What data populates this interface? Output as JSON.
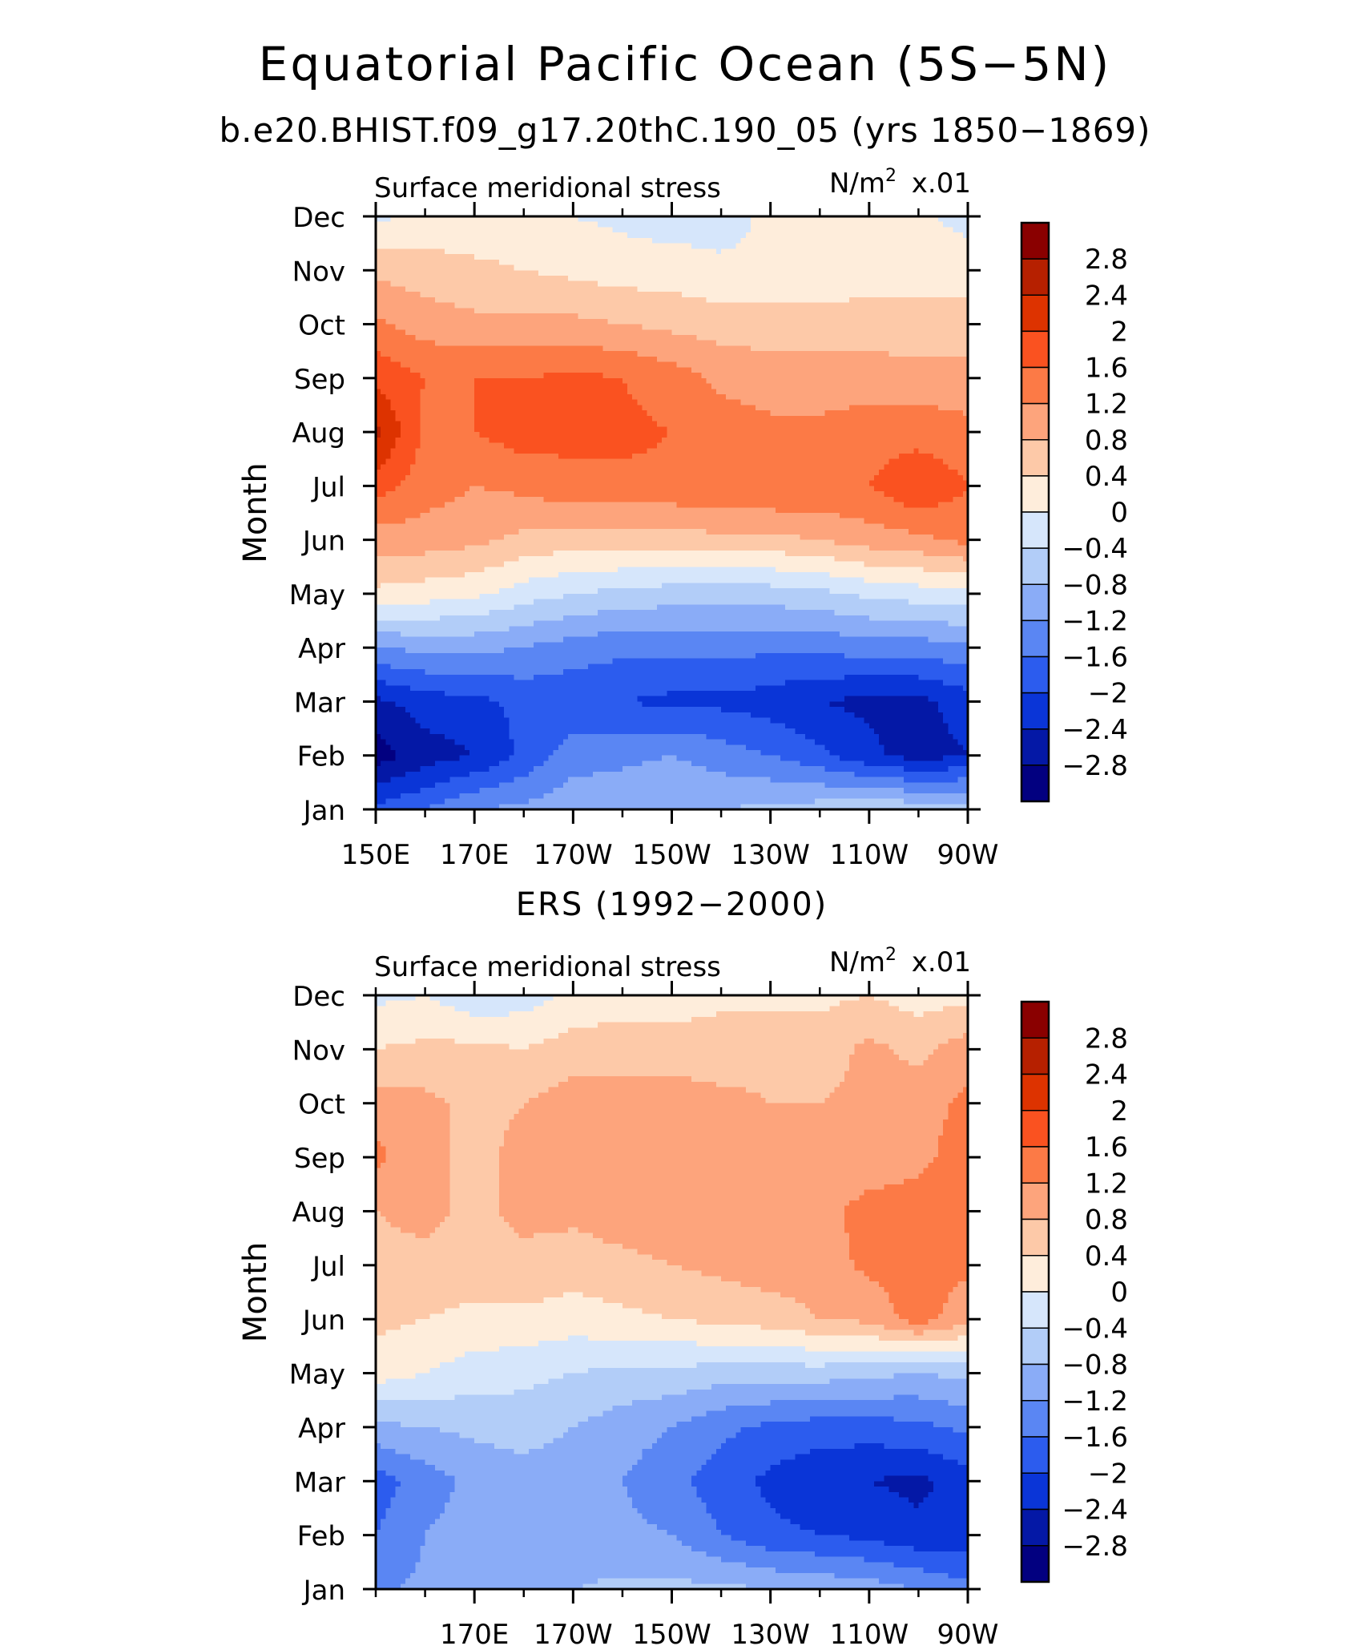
{
  "title": "Equatorial Pacific Ocean (5S−5N)",
  "subtitle": "b.e20.BHIST.f09_g17.20thC.190_05 (yrs 1850−1869)",
  "palette": {
    "levels": [
      "2.8",
      "2.4",
      "2",
      "1.6",
      "1.2",
      "0.8",
      "0.4",
      "0",
      "−0.4",
      "−0.8",
      "−1.2",
      "−1.6",
      "−2",
      "−2.4",
      "−2.8"
    ],
    "colors": [
      "#8a0000",
      "#b62000",
      "#dd3300",
      "#fa5220",
      "#fc7a46",
      "#fda47c",
      "#fdc9a8",
      "#feeddb",
      "#d6e6fb",
      "#b2cdf8",
      "#8aacf7",
      "#5a86f3",
      "#2c5cee",
      "#0a35d7",
      "#0418a6",
      "#020080"
    ],
    "line": "#000000",
    "background": "#ffffff"
  },
  "chart_data": [
    {
      "type": "heatmap",
      "panel_title": "",
      "left_string": "Surface meridional stress",
      "units": {
        "base": "N/m",
        "exp": "2",
        "scale": "x.01"
      },
      "ylabel": "Month",
      "y_categories": [
        "Jan",
        "Feb",
        "Mar",
        "Apr",
        "May",
        "Jun",
        "Jul",
        "Aug",
        "Sep",
        "Oct",
        "Nov",
        "Dec"
      ],
      "x_range": [
        150,
        270
      ],
      "x_ticks": [
        {
          "lon": 150,
          "label": "150E"
        },
        {
          "lon": 170,
          "label": "170E"
        },
        {
          "lon": 190,
          "label": "170W"
        },
        {
          "lon": 210,
          "label": "150W"
        },
        {
          "lon": 230,
          "label": "130W"
        },
        {
          "lon": 250,
          "label": "110W"
        },
        {
          "lon": 270,
          "label": "90W"
        }
      ],
      "x_minor_step": 10,
      "lon_grid": [
        150,
        160,
        170,
        180,
        190,
        200,
        210,
        220,
        230,
        240,
        250,
        260,
        270
      ],
      "values": [
        [
          -1.9,
          -1.6,
          -1.2,
          -1.1,
          -0.9,
          -0.9,
          -0.8,
          -0.8,
          -0.7,
          -0.6,
          -0.5,
          -0.5,
          -0.6
        ],
        [
          -3.0,
          -2.6,
          -2.4,
          -1.9,
          -1.4,
          -1.3,
          -1.2,
          -1.4,
          -1.6,
          -1.9,
          -2.3,
          -2.6,
          -2.4
        ],
        [
          -2.5,
          -2.2,
          -2.1,
          -1.9,
          -1.9,
          -2.0,
          -2.1,
          -2.1,
          -2.2,
          -2.4,
          -2.5,
          -2.5,
          -2.2
        ],
        [
          -1.2,
          -1.1,
          -1.1,
          -1.2,
          -1.4,
          -1.5,
          -1.5,
          -1.5,
          -1.5,
          -1.5,
          -1.4,
          -1.4,
          -1.3
        ],
        [
          0.3,
          0.2,
          0.1,
          -0.2,
          -0.4,
          -0.5,
          -0.6,
          -0.6,
          -0.6,
          -0.5,
          -0.3,
          -0.2,
          -0.1
        ],
        [
          1.0,
          1.0,
          0.9,
          0.7,
          0.6,
          0.6,
          0.6,
          0.7,
          0.7,
          0.8,
          1.0,
          1.1,
          1.3
        ],
        [
          1.8,
          1.4,
          1.2,
          1.3,
          1.5,
          1.5,
          1.5,
          1.6,
          1.6,
          1.6,
          1.6,
          2.0,
          1.6
        ],
        [
          2.5,
          1.5,
          1.6,
          1.8,
          1.7,
          1.7,
          1.6,
          1.4,
          1.3,
          1.3,
          1.4,
          1.4,
          1.3
        ],
        [
          1.9,
          1.6,
          1.6,
          1.6,
          1.7,
          1.6,
          1.4,
          1.1,
          1.0,
          1.0,
          1.0,
          1.0,
          1.0
        ],
        [
          1.3,
          1.0,
          0.9,
          0.9,
          0.9,
          0.8,
          0.7,
          0.6,
          0.6,
          0.6,
          0.6,
          0.5,
          0.5
        ],
        [
          0.7,
          0.6,
          0.5,
          0.4,
          0.3,
          0.2,
          0.2,
          0.1,
          0.1,
          0.1,
          0.2,
          0.3,
          0.3
        ],
        [
          -0.1,
          0.1,
          0.1,
          0.1,
          0.0,
          -0.1,
          -0.2,
          -0.2,
          0.1,
          0.1,
          0.1,
          0.1,
          -0.2
        ]
      ],
      "colorbar_levels": [
        "2.8",
        "2.4",
        "2",
        "1.6",
        "1.2",
        "0.8",
        "0.4",
        "0",
        "−0.4",
        "−0.8",
        "−1.2",
        "−1.6",
        "−2",
        "−2.4",
        "−2.8"
      ]
    },
    {
      "type": "heatmap",
      "panel_title": "ERS (1992−2000)",
      "left_string": "Surface meridional stress",
      "units": {
        "base": "N/m",
        "exp": "2",
        "scale": "x.01"
      },
      "ylabel": "Month",
      "y_categories": [
        "Jan",
        "Feb",
        "Mar",
        "Apr",
        "May",
        "Jun",
        "Jul",
        "Aug",
        "Sep",
        "Oct",
        "Nov",
        "Dec"
      ],
      "x_range": [
        150,
        270
      ],
      "x_ticks": [
        {
          "lon": 170,
          "label": "170E"
        },
        {
          "lon": 190,
          "label": "170W"
        },
        {
          "lon": 210,
          "label": "150W"
        },
        {
          "lon": 230,
          "label": "130W"
        },
        {
          "lon": 250,
          "label": "110W"
        },
        {
          "lon": 270,
          "label": "90W"
        }
      ],
      "x_minor_step": 10,
      "lon_grid": [
        150,
        160,
        170,
        180,
        190,
        200,
        210,
        220,
        230,
        240,
        250,
        260,
        270
      ],
      "values": [
        [
          -1.3,
          -1.1,
          -0.9,
          -0.8,
          -0.8,
          -0.7,
          -0.7,
          -0.7,
          -0.8,
          -0.9,
          -1.0,
          -1.2,
          -1.5
        ],
        [
          -1.6,
          -1.2,
          -1.0,
          -1.0,
          -1.1,
          -1.1,
          -1.2,
          -1.6,
          -1.9,
          -2.0,
          -2.1,
          -2.3,
          -2.2
        ],
        [
          -1.8,
          -1.4,
          -1.1,
          -1.0,
          -1.1,
          -1.2,
          -1.5,
          -1.8,
          -2.1,
          -2.3,
          -2.4,
          -2.5,
          -2.2
        ],
        [
          -0.9,
          -0.8,
          -0.7,
          -0.6,
          -0.8,
          -1.0,
          -1.2,
          -1.5,
          -1.7,
          -1.8,
          -1.8,
          -1.7,
          -1.5
        ],
        [
          0.2,
          0.0,
          -0.2,
          -0.3,
          -0.4,
          -0.5,
          -0.5,
          -0.6,
          -0.6,
          -0.6,
          -0.7,
          -0.8,
          -0.7
        ],
        [
          0.5,
          0.4,
          0.3,
          0.3,
          0.2,
          0.3,
          0.4,
          0.5,
          0.6,
          0.8,
          0.9,
          1.4,
          0.9
        ],
        [
          0.7,
          0.7,
          0.6,
          0.7,
          0.6,
          0.7,
          0.8,
          0.9,
          1.0,
          1.0,
          1.3,
          1.4,
          1.3
        ],
        [
          0.8,
          0.9,
          0.7,
          0.9,
          0.9,
          1.0,
          1.0,
          1.0,
          1.0,
          1.0,
          1.4,
          1.4,
          1.5
        ],
        [
          1.3,
          0.9,
          0.7,
          0.9,
          1.0,
          1.0,
          1.0,
          1.0,
          0.9,
          0.8,
          0.9,
          1.1,
          1.4
        ],
        [
          1.0,
          0.9,
          0.7,
          0.8,
          1.0,
          0.9,
          1.0,
          0.9,
          0.8,
          0.8,
          0.9,
          1.0,
          1.3
        ],
        [
          0.4,
          0.5,
          0.5,
          0.4,
          0.6,
          0.7,
          0.6,
          0.6,
          0.7,
          0.6,
          0.9,
          0.7,
          1.0
        ],
        [
          -0.1,
          0.0,
          -0.3,
          -0.2,
          0.1,
          0.1,
          0.2,
          0.3,
          0.3,
          0.3,
          0.4,
          0.2,
          0.3
        ]
      ],
      "colorbar_levels": [
        "2.8",
        "2.4",
        "2",
        "1.6",
        "1.2",
        "0.8",
        "0.4",
        "0",
        "−0.4",
        "−0.8",
        "−1.2",
        "−1.6",
        "−2",
        "−2.4",
        "−2.8"
      ]
    }
  ]
}
